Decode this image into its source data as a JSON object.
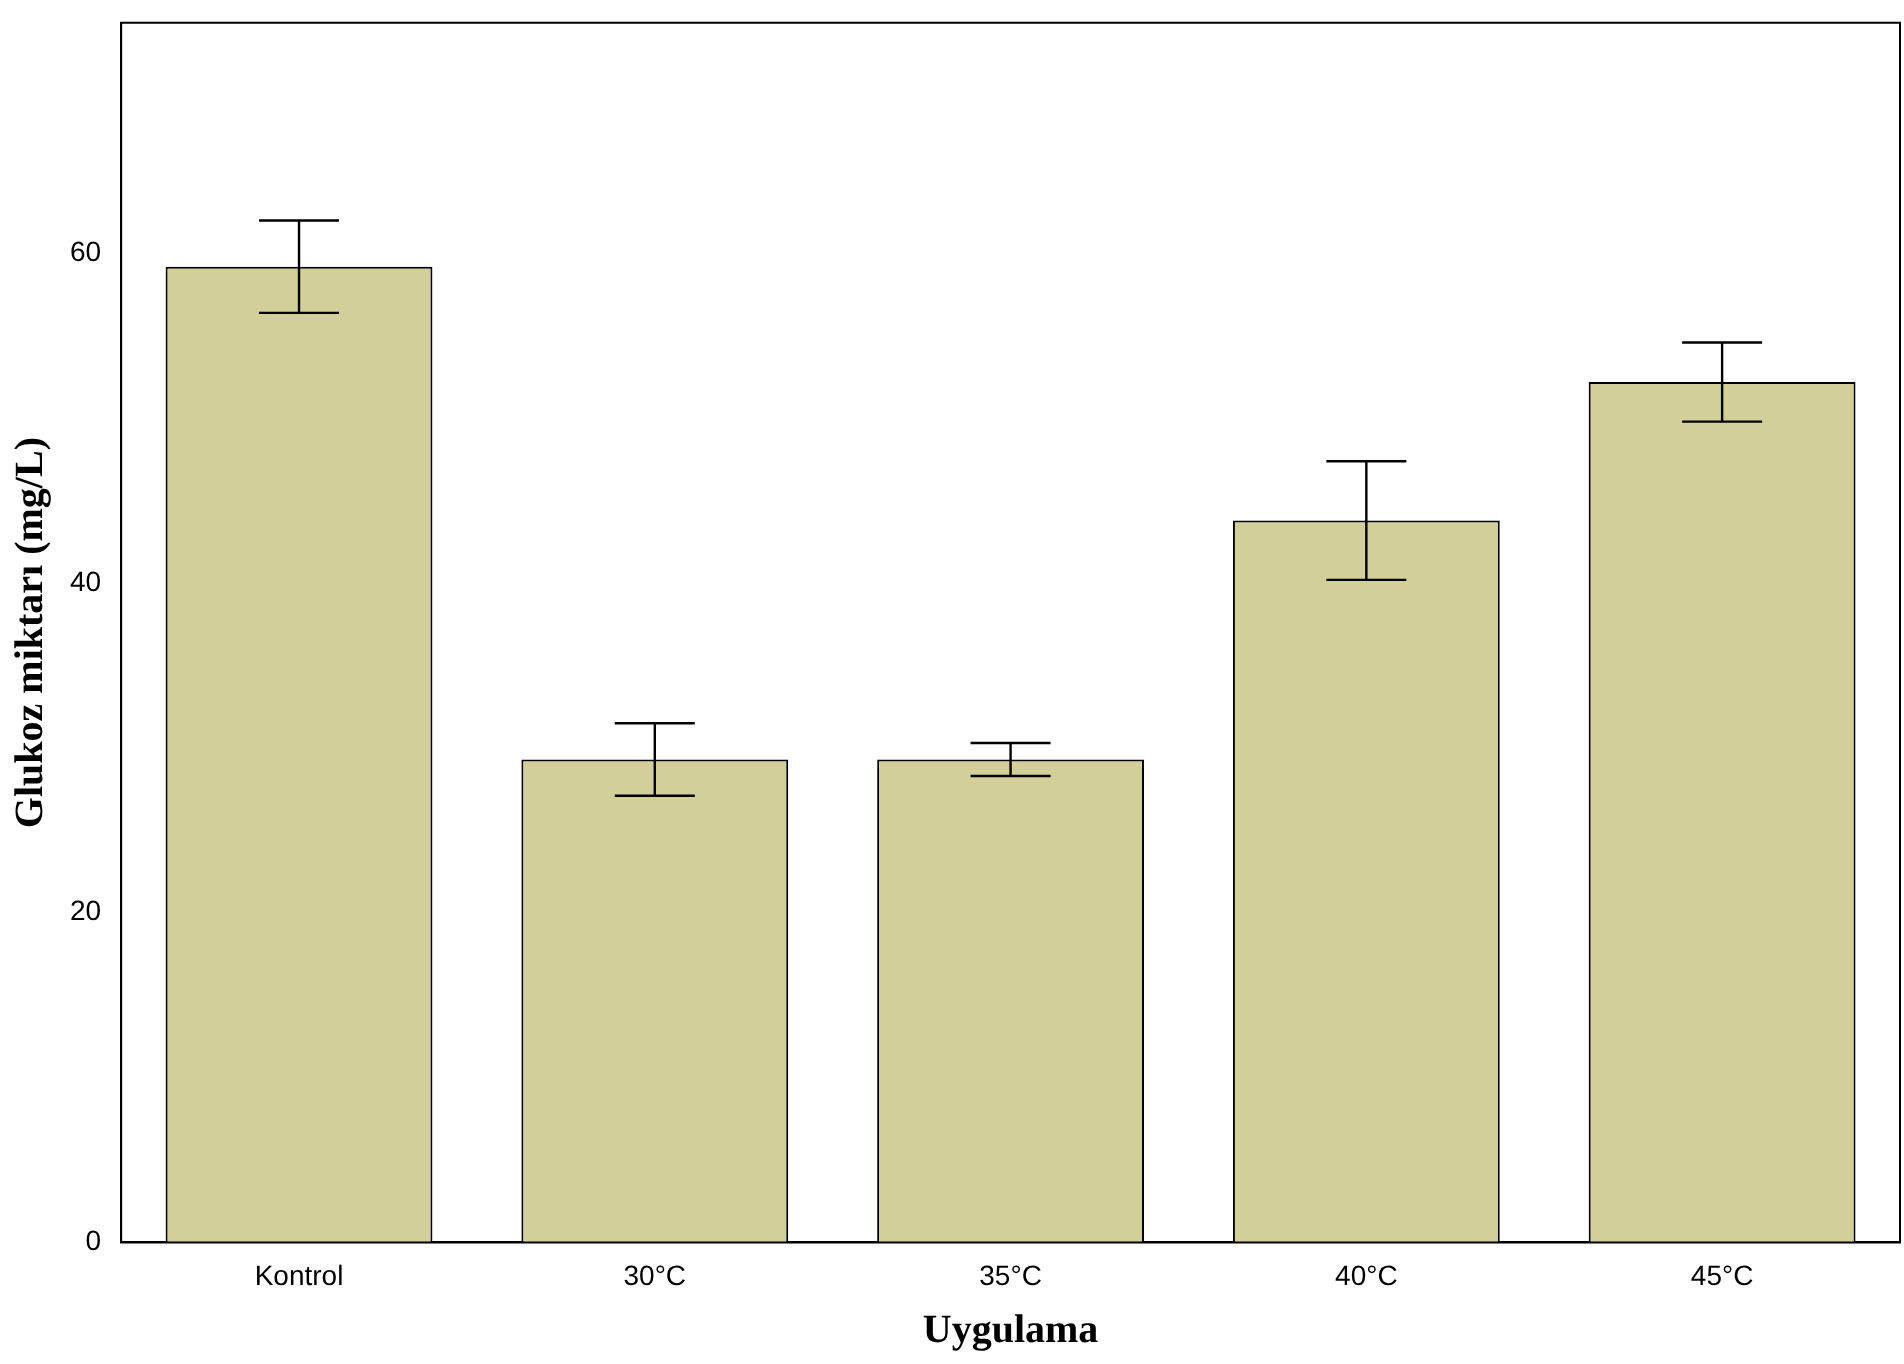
{
  "chart_data": {
    "type": "bar",
    "xlabel": "Uygulama",
    "ylabel": "Glukoz miktarı (mg/L)",
    "categories": [
      "Kontrol",
      "30°C",
      "35°C",
      "40°C",
      "45°C"
    ],
    "values": [
      59.2,
      29.3,
      29.3,
      43.8,
      52.2
    ],
    "errors": [
      2.8,
      2.2,
      1.0,
      3.6,
      2.4
    ],
    "color": "#d3cf98",
    "ylim": [
      0,
      74
    ],
    "yticks": [
      0,
      20,
      40,
      60
    ],
    "grid": false,
    "legend": false
  }
}
